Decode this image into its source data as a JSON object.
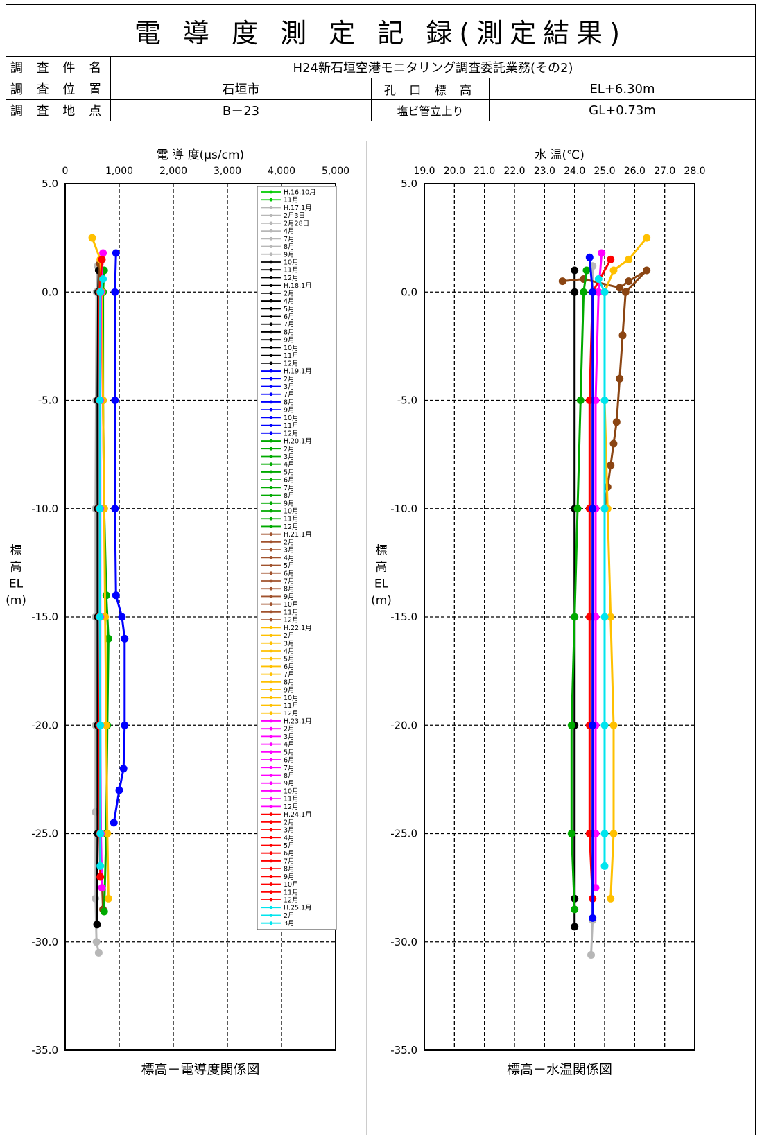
{
  "header": {
    "title": "電 導 度 測 定 記 録(測定結果)",
    "rows": [
      {
        "label": "調 査 件 名",
        "value": "H24新石垣空港モニタリング調査委託業務(その2)"
      },
      {
        "label": "調 査 位 置",
        "value": "石垣市",
        "label2": "孔 口 標 高",
        "value2": "EL+6.30m"
      },
      {
        "label": "調 査 地 点",
        "value": "B－23",
        "label2": "塩ビ管立上り",
        "value2": "GL+0.73m"
      }
    ]
  },
  "chart_data": [
    {
      "type": "line",
      "title": "標高－電導度関係図",
      "xlabel": "電 導 度(μs/cm)",
      "ylabel": [
        "標",
        "高",
        "EL",
        "(m)"
      ],
      "xlim": [
        0,
        5000
      ],
      "ylim": [
        -35,
        5
      ],
      "xticks": [
        "0",
        "1,000",
        "2,000",
        "3,000",
        "4,000",
        "5,000"
      ],
      "yticks": [
        "5.0",
        "0.0",
        "-5.0",
        "-10.0",
        "-15.0",
        "-20.0",
        "-25.0",
        "-30.0",
        "-35.0"
      ],
      "grid": true,
      "legend_position": "top-right",
      "legend": [
        "H.16.10月",
        "11月",
        "H.17.1月",
        "2月3日",
        "2月28日",
        "4月",
        "7月",
        "8月",
        "9月",
        "10月",
        "11月",
        "12月",
        "H.18.1月",
        "2月",
        "4月",
        "5月",
        "6月",
        "7月",
        "8月",
        "9月",
        "10月",
        "11月",
        "12月",
        "H.19.1月",
        "2月",
        "3月",
        "7月",
        "8月",
        "9月",
        "10月",
        "11月",
        "12月",
        "H.20.1月",
        "2月",
        "3月",
        "4月",
        "5月",
        "6月",
        "7月",
        "8月",
        "9月",
        "10月",
        "11月",
        "12月",
        "H.21.1月",
        "2月",
        "3月",
        "4月",
        "5月",
        "6月",
        "7月",
        "8月",
        "9月",
        "10月",
        "11月",
        "12月",
        "H.22.1月",
        "2月",
        "3月",
        "4月",
        "5月",
        "6月",
        "7月",
        "8月",
        "9月",
        "10月",
        "11月",
        "12月",
        "H.23.1月",
        "2月",
        "3月",
        "4月",
        "5月",
        "6月",
        "7月",
        "8月",
        "9月",
        "10月",
        "11月",
        "12月",
        "H.24.1月",
        "2月",
        "3月",
        "4月",
        "5月",
        "6月",
        "7月",
        "8月",
        "9月",
        "10月",
        "11月",
        "12月",
        "H.25.1月",
        "2月",
        "3月"
      ],
      "series": [
        {
          "color": "#b7b7b7",
          "values": [
            [
              600,
              1.2
            ],
            [
              580,
              0
            ],
            [
              570,
              -5
            ],
            [
              560,
              -10
            ],
            [
              560,
              -15
            ],
            [
              560,
              -20
            ],
            [
              560,
              -24
            ],
            [
              560,
              -28
            ],
            [
              580,
              -30
            ],
            [
              620,
              -30.5
            ]
          ]
        },
        {
          "color": "#000000",
          "values": [
            [
              620,
              1.0
            ],
            [
              610,
              0
            ],
            [
              600,
              -5
            ],
            [
              600,
              -10
            ],
            [
              600,
              -15
            ],
            [
              600,
              -20
            ],
            [
              600,
              -25
            ],
            [
              590,
              -29.2
            ]
          ]
        },
        {
          "color": "#8b4513",
          "values": [
            [
              640,
              1.3
            ],
            [
              630,
              0
            ],
            [
              630,
              -5
            ],
            [
              630,
              -10
            ],
            [
              630,
              -15
            ],
            [
              640,
              -20
            ],
            [
              650,
              -25
            ],
            [
              700,
              -28.5
            ]
          ]
        },
        {
          "color": "#00aa00",
          "values": [
            [
              720,
              1.0
            ],
            [
              700,
              0
            ],
            [
              700,
              -5
            ],
            [
              720,
              -10
            ],
            [
              760,
              -14
            ],
            [
              800,
              -16
            ],
            [
              780,
              -20
            ],
            [
              760,
              -25
            ],
            [
              720,
              -28.6
            ]
          ]
        },
        {
          "color": "#ffc000",
          "values": [
            [
              500,
              2.5
            ],
            [
              650,
              1.5
            ],
            [
              680,
              0
            ],
            [
              700,
              -5
            ],
            [
              720,
              -10
            ],
            [
              740,
              -15
            ],
            [
              760,
              -20
            ],
            [
              780,
              -25
            ],
            [
              800,
              -28
            ]
          ]
        },
        {
          "color": "#ff00ff",
          "values": [
            [
              700,
              1.8
            ],
            [
              660,
              0
            ],
            [
              650,
              -5
            ],
            [
              650,
              -10
            ],
            [
              650,
              -15
            ],
            [
              650,
              -20
            ],
            [
              660,
              -25
            ],
            [
              680,
              -27.5
            ]
          ]
        },
        {
          "color": "#ff0000",
          "values": [
            [
              680,
              1.5
            ],
            [
              640,
              0
            ],
            [
              630,
              -5
            ],
            [
              630,
              -10
            ],
            [
              630,
              -15
            ],
            [
              630,
              -20
            ],
            [
              640,
              -25
            ],
            [
              650,
              -27
            ]
          ]
        },
        {
          "color": "#0000ff",
          "values": [
            [
              940,
              1.8
            ],
            [
              920,
              0
            ],
            [
              920,
              -5
            ],
            [
              920,
              -10
            ],
            [
              940,
              -14
            ],
            [
              1050,
              -15
            ],
            [
              1100,
              -16
            ],
            [
              1100,
              -20
            ],
            [
              1080,
              -22
            ],
            [
              1000,
              -23
            ],
            [
              900,
              -24.5
            ]
          ]
        },
        {
          "color": "#00e5ee",
          "values": [
            [
              700,
              0.6
            ],
            [
              650,
              0
            ],
            [
              640,
              -5
            ],
            [
              640,
              -10
            ],
            [
              640,
              -15
            ],
            [
              650,
              -20
            ],
            [
              650,
              -25
            ],
            [
              650,
              -26.5
            ]
          ]
        }
      ]
    },
    {
      "type": "line",
      "title": "標高－水温関係図",
      "xlabel": "水 温(℃)",
      "ylabel": [
        "標",
        "高",
        "EL",
        "(m)"
      ],
      "xlim": [
        19.0,
        28.0
      ],
      "ylim": [
        -35,
        5
      ],
      "xticks": [
        "19.0",
        "20.0",
        "21.0",
        "22.0",
        "23.0",
        "24.0",
        "25.0",
        "26.0",
        "27.0",
        "28.0"
      ],
      "yticks": [
        "5.0",
        "0.0",
        "-5.0",
        "-10.0",
        "-15.0",
        "-20.0",
        "-25.0",
        "-30.0",
        "-35.0"
      ],
      "grid": true,
      "series": [
        {
          "color": "#b7b7b7",
          "values": [
            [
              24.6,
              1.2
            ],
            [
              24.6,
              0
            ],
            [
              24.6,
              -10
            ],
            [
              24.6,
              -20
            ],
            [
              24.6,
              -29
            ],
            [
              24.55,
              -30.6
            ]
          ]
        },
        {
          "color": "#000000",
          "values": [
            [
              24.0,
              1.0
            ],
            [
              24.0,
              0
            ],
            [
              24.0,
              -10
            ],
            [
              24.0,
              -20
            ],
            [
              24.0,
              -28
            ],
            [
              24.0,
              -29.3
            ]
          ]
        },
        {
          "color": "#8b4513",
          "values": [
            [
              23.6,
              0.5
            ],
            [
              24.3,
              0.6
            ],
            [
              25.5,
              0.2
            ],
            [
              25.8,
              0.5
            ],
            [
              26.4,
              1.0
            ],
            [
              25.7,
              0
            ],
            [
              25.6,
              -2
            ],
            [
              25.5,
              -4
            ],
            [
              25.4,
              -6
            ],
            [
              25.3,
              -7
            ],
            [
              25.2,
              -8
            ],
            [
              25.1,
              -9
            ],
            [
              25.0,
              -10
            ]
          ]
        },
        {
          "color": "#00aa00",
          "values": [
            [
              24.4,
              1.0
            ],
            [
              24.3,
              0
            ],
            [
              24.2,
              -5
            ],
            [
              24.1,
              -10
            ],
            [
              24.0,
              -15
            ],
            [
              23.9,
              -20
            ],
            [
              23.9,
              -25
            ],
            [
              24.0,
              -28.5
            ]
          ]
        },
        {
          "color": "#ffc000",
          "values": [
            [
              26.4,
              2.5
            ],
            [
              25.8,
              1.5
            ],
            [
              25.3,
              1.0
            ],
            [
              25.0,
              0
            ],
            [
              25.0,
              -5
            ],
            [
              25.1,
              -10
            ],
            [
              25.2,
              -15
            ],
            [
              25.3,
              -20
            ],
            [
              25.3,
              -25
            ],
            [
              25.2,
              -28
            ]
          ]
        },
        {
          "color": "#ff00ff",
          "values": [
            [
              24.9,
              1.8
            ],
            [
              24.8,
              0
            ],
            [
              24.7,
              -5
            ],
            [
              24.7,
              -10
            ],
            [
              24.7,
              -15
            ],
            [
              24.7,
              -20
            ],
            [
              24.7,
              -25
            ],
            [
              24.7,
              -27.5
            ]
          ]
        },
        {
          "color": "#ff0000",
          "values": [
            [
              25.2,
              1.5
            ],
            [
              24.6,
              0
            ],
            [
              24.5,
              -5
            ],
            [
              24.5,
              -10
            ],
            [
              24.5,
              -15
            ],
            [
              24.5,
              -20
            ],
            [
              24.5,
              -25
            ],
            [
              24.6,
              -28
            ]
          ]
        },
        {
          "color": "#0000ff",
          "values": [
            [
              24.5,
              1.6
            ],
            [
              24.6,
              0
            ],
            [
              24.6,
              -10
            ],
            [
              24.6,
              -20
            ],
            [
              24.6,
              -28.9
            ]
          ]
        },
        {
          "color": "#00e5ee",
          "values": [
            [
              24.8,
              0.6
            ],
            [
              25.0,
              0
            ],
            [
              25.0,
              -5
            ],
            [
              25.0,
              -10
            ],
            [
              25.0,
              -15
            ],
            [
              25.0,
              -20
            ],
            [
              25.0,
              -25
            ],
            [
              25.0,
              -26.5
            ]
          ]
        }
      ]
    }
  ]
}
